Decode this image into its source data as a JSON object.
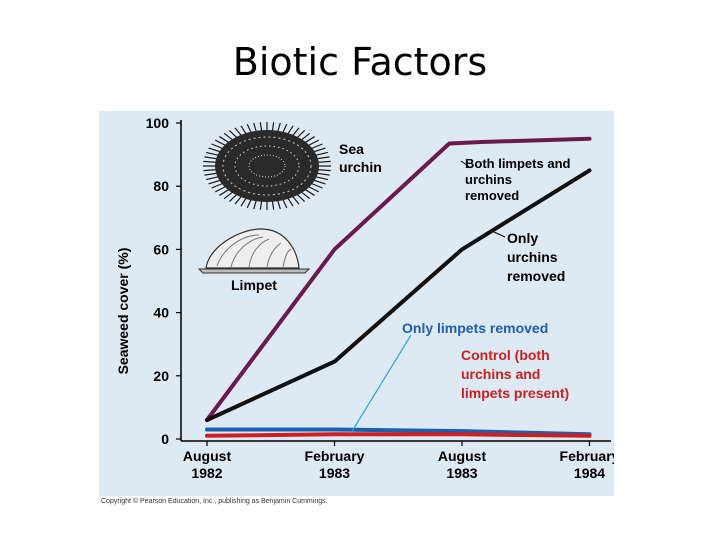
{
  "slide": {
    "title": "Biotic Factors",
    "copyright": "Copyright © Pearson Education, Inc., publishing as Benjamin Cummings."
  },
  "illustration_labels": {
    "urchin": "Sea urchin",
    "limpet": "Limpet"
  },
  "chart_data": {
    "type": "line",
    "ylabel": "Seaweed cover (%)",
    "ylim": [
      0,
      100
    ],
    "yticks": [
      0,
      20,
      40,
      60,
      80,
      100
    ],
    "x": [
      {
        "month": "August",
        "year": "1982"
      },
      {
        "month": "February",
        "year": "1983"
      },
      {
        "month": "August",
        "year": "1983"
      },
      {
        "month": "February",
        "year": "1984"
      }
    ],
    "grid": false,
    "background": "#dde9f3",
    "series": [
      {
        "name": "Both limpets and urchins removed",
        "color": "#6b1a4d",
        "points": [
          [
            0,
            6
          ],
          [
            1,
            60
          ],
          [
            1.9,
            93.5
          ],
          [
            2.15,
            94
          ],
          [
            3,
            95
          ]
        ]
      },
      {
        "name": "Only urchins removed",
        "color": "#111111",
        "points": [
          [
            0,
            6
          ],
          [
            1,
            24.5
          ],
          [
            2,
            60
          ],
          [
            3,
            85
          ]
        ]
      },
      {
        "name": "Only limpets removed",
        "color": "#1c5fb0",
        "points": [
          [
            0,
            3
          ],
          [
            1,
            3
          ],
          [
            2,
            2.5
          ],
          [
            3,
            1.5
          ]
        ]
      },
      {
        "name": "Control (both urchins and limpets present)",
        "color": "#cc1f1f",
        "points": [
          [
            0,
            1
          ],
          [
            1,
            1.5
          ],
          [
            2,
            1.5
          ],
          [
            3,
            1
          ]
        ]
      }
    ],
    "annotations": {
      "both_removed": [
        "Both limpets and",
        "urchins",
        "removed"
      ],
      "only_urchins": [
        "Only",
        "urchins",
        "removed"
      ],
      "only_limpets": "Only limpets removed",
      "control": [
        "Control (both",
        "urchins and",
        "limpets present)"
      ]
    }
  }
}
